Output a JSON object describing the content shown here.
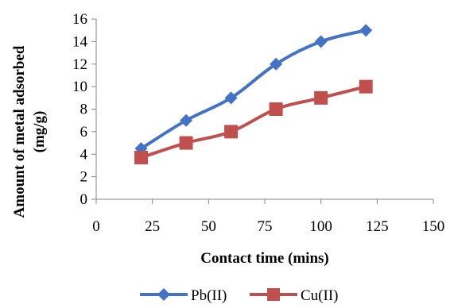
{
  "chart_data": {
    "type": "line",
    "title": "",
    "xlabel": "Contact time (mins)",
    "ylabel_lines": [
      "Amount of metal adsorbed",
      "(mg/g)"
    ],
    "xlim": [
      0,
      150
    ],
    "ylim": [
      0,
      16
    ],
    "xticks": [
      0,
      25,
      50,
      75,
      100,
      125,
      150
    ],
    "yticks": [
      0,
      2,
      4,
      6,
      8,
      10,
      12,
      14,
      16
    ],
    "grid": false,
    "legend_position": "bottom",
    "x": [
      20,
      40,
      60,
      80,
      100,
      120
    ],
    "series": [
      {
        "name": "Pb(II)",
        "values": [
          4.5,
          7,
          9,
          12,
          14,
          15
        ],
        "color": "#4472C4",
        "marker": "diamond"
      },
      {
        "name": "Cu(II)",
        "values": [
          3.7,
          5,
          6,
          8,
          9,
          10
        ],
        "color": "#C0504D",
        "marker": "square"
      }
    ]
  }
}
